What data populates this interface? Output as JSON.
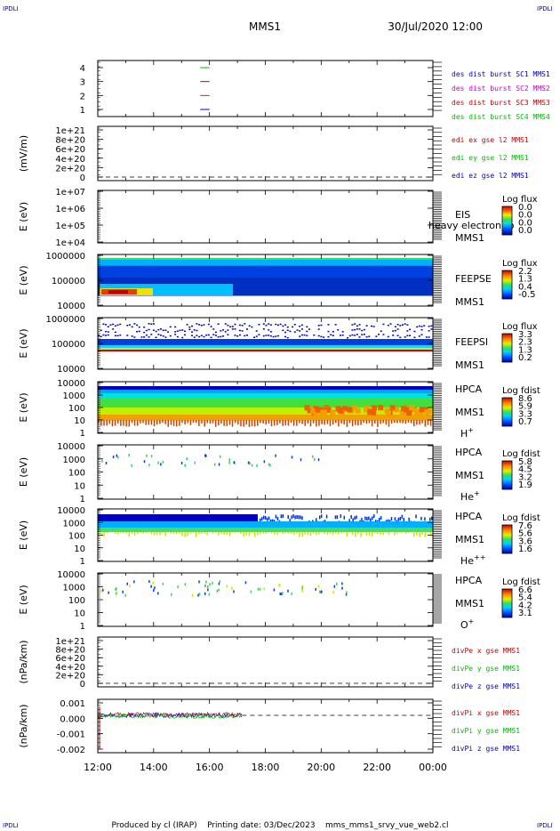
{
  "corner_label": "IPDLI",
  "header": {
    "title": "MMS1",
    "datetime": "30/Jul/2020 12:00"
  },
  "footer": "Produced by cl (IRAP)    Printing date: 03/Dec/2023    mms_mms1_srvy_vue_web2.cl",
  "x_axis": {
    "ticks": [
      "12:00",
      "14:00",
      "16:00",
      "18:00",
      "20:00",
      "22:00",
      "00:00"
    ]
  },
  "colors": {
    "blue": "#0000cc",
    "magenta": "#cc00cc",
    "red": "#cc0000",
    "green": "#00bb00"
  },
  "chart_data": [
    {
      "type": "line",
      "name": "burst",
      "yticks": [
        "4",
        "3",
        "2",
        "1"
      ],
      "legend": [
        {
          "text": "des dist burst SC1 MMS1",
          "color": "blue"
        },
        {
          "text": "des dist burst SC2 MMS2",
          "color": "magenta"
        },
        {
          "text": "des dist burst SC3 MMS3",
          "color": "red"
        },
        {
          "text": "des dist burst SC4 MMS4",
          "color": "green"
        }
      ],
      "segments": [
        {
          "y": 4,
          "x": [
            "15:40",
            "16:00"
          ],
          "color": "green"
        },
        {
          "y": 3,
          "x": [
            "15:40",
            "16:00"
          ],
          "color": "red"
        },
        {
          "y": 2,
          "x": [
            "15:40",
            "16:00"
          ],
          "color": "magenta"
        },
        {
          "y": 1,
          "x": [
            "15:40",
            "16:00"
          ],
          "color": "blue"
        }
      ]
    },
    {
      "type": "line",
      "name": "edi",
      "ylabel": "(mV/m)",
      "yticks": [
        "1e+21",
        "8e+20",
        "6e+20",
        "4e+20",
        "2e+20",
        "0"
      ],
      "legend": [
        {
          "text": "edi ex gse l2 MMS1",
          "color": "red"
        },
        {
          "text": "edi ey gse l2 MMS1",
          "color": "green"
        },
        {
          "text": "edi ez gse l2 MMS1",
          "color": "blue"
        }
      ]
    },
    {
      "type": "heatmap",
      "name": "eis",
      "ylabel": "E (eV)",
      "yticks": [
        "1e+07",
        "1e+06",
        "1e+05",
        "1e+04"
      ],
      "right": [
        "EIS",
        "MMS1"
      ],
      "overlay": "heavy electron to",
      "colorbar": {
        "title": "Log flux",
        "ticks": [
          "0.0",
          "0.0",
          "0.0",
          "0.0"
        ]
      }
    },
    {
      "type": "heatmap",
      "name": "feepse",
      "ylabel": "E (eV)",
      "yticks": [
        "1000000",
        "100000",
        "10000"
      ],
      "right": [
        "FEEPSE",
        "MMS1"
      ],
      "colorbar": {
        "title": "Log flux",
        "ticks": [
          "2.2",
          "1.3",
          "0.4",
          "-0.5"
        ]
      }
    },
    {
      "type": "heatmap",
      "name": "feepsi",
      "ylabel": "E (eV)",
      "yticks": [
        "1000000",
        "100000",
        "10000"
      ],
      "right": [
        "FEEPSI",
        "MMS1"
      ],
      "colorbar": {
        "title": "Log flux",
        "ticks": [
          "3.3",
          "2.3",
          "1.3",
          "0.2"
        ]
      }
    },
    {
      "type": "heatmap",
      "name": "hpca-h",
      "ylabel": "E (eV)",
      "yticks": [
        "10000",
        "1000",
        "100",
        "10",
        "1"
      ],
      "right": [
        "HPCA",
        "MMS1"
      ],
      "species": "H",
      "species_sup": "+",
      "colorbar": {
        "title": "Log fdist",
        "ticks": [
          "8.6",
          "5.9",
          "3.3",
          "0.7"
        ]
      }
    },
    {
      "type": "heatmap",
      "name": "hpca-he",
      "ylabel": "E (eV)",
      "yticks": [
        "10000",
        "1000",
        "100",
        "10",
        "1"
      ],
      "right": [
        "HPCA",
        "MMS1"
      ],
      "species": "He",
      "species_sup": "+",
      "colorbar": {
        "title": "Log fdist",
        "ticks": [
          "5.8",
          "4.5",
          "3.2",
          "1.9"
        ]
      }
    },
    {
      "type": "heatmap",
      "name": "hpca-hepp",
      "ylabel": "E (eV)",
      "yticks": [
        "10000",
        "1000",
        "100",
        "10",
        "1"
      ],
      "right": [
        "HPCA",
        "MMS1"
      ],
      "species": "He",
      "species_sup": "++",
      "colorbar": {
        "title": "Log fdist",
        "ticks": [
          "7.6",
          "5.6",
          "3.6",
          "1.6"
        ]
      }
    },
    {
      "type": "heatmap",
      "name": "hpca-o",
      "ylabel": "E (eV)",
      "yticks": [
        "10000",
        "1000",
        "100",
        "10",
        "1"
      ],
      "right": [
        "HPCA",
        "MMS1"
      ],
      "species": "O",
      "species_sup": "+",
      "colorbar": {
        "title": "Log fdist",
        "ticks": [
          "6.6",
          "5.4",
          "4.2",
          "3.1"
        ]
      }
    },
    {
      "type": "line",
      "name": "divpe",
      "ylabel": "(nPa/km)",
      "yticks": [
        "1e+21",
        "8e+20",
        "6e+20",
        "4e+20",
        "2e+20",
        "0"
      ],
      "legend": [
        {
          "text": "divPe x gse MMS1",
          "color": "red"
        },
        {
          "text": "divPe y gse MMS1",
          "color": "green"
        },
        {
          "text": "divPe z gse MMS1",
          "color": "blue"
        }
      ]
    },
    {
      "type": "line",
      "name": "divpi",
      "ylabel": "(nPa/km)",
      "yticks": [
        "0.001",
        "0.000",
        "-0.001",
        "-0.002"
      ],
      "legend": [
        {
          "text": "divPi x gse MMS1",
          "color": "red"
        },
        {
          "text": "divPi y gse MMS1",
          "color": "green"
        },
        {
          "text": "divPi z gse MMS1",
          "color": "blue"
        }
      ],
      "data_span": [
        "12:00",
        "17:10"
      ]
    }
  ]
}
